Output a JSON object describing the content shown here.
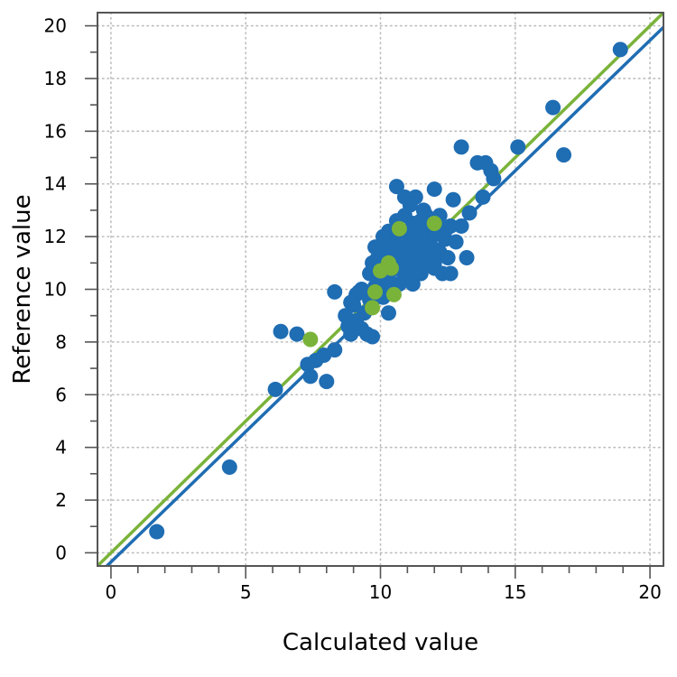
{
  "chart_data": {
    "type": "scatter",
    "xlabel": "Calculated value",
    "ylabel": "Reference value",
    "xlim": [
      -0.5,
      20.5
    ],
    "ylim": [
      -0.5,
      20.5
    ],
    "x_ticks": [
      0,
      5,
      10,
      15,
      20
    ],
    "y_ticks": [
      0,
      2,
      4,
      6,
      8,
      10,
      12,
      14,
      16,
      18,
      20
    ],
    "grid": true,
    "colors": {
      "series_blue": "#1f6db3",
      "series_green": "#7ab33a",
      "grid": "#bdbdbd",
      "axis": "#555555"
    },
    "series": [
      {
        "color": "#1f6db3",
        "fit_line": {
          "slope": 0.99,
          "intercept": -0.35
        },
        "points": [
          [
            1.7,
            0.8
          ],
          [
            4.4,
            3.25
          ],
          [
            6.1,
            6.2
          ],
          [
            6.3,
            8.4
          ],
          [
            6.9,
            8.3
          ],
          [
            7.3,
            7.15
          ],
          [
            7.4,
            6.7
          ],
          [
            7.6,
            7.3
          ],
          [
            7.9,
            7.5
          ],
          [
            8.0,
            6.5
          ],
          [
            8.3,
            9.9
          ],
          [
            8.3,
            7.7
          ],
          [
            8.7,
            9.0
          ],
          [
            8.8,
            8.6
          ],
          [
            8.9,
            8.3
          ],
          [
            9.0,
            9.4
          ],
          [
            9.1,
            8.8
          ],
          [
            9.2,
            9.9
          ],
          [
            9.3,
            8.5
          ],
          [
            9.4,
            9.1
          ],
          [
            9.5,
            8.3
          ],
          [
            9.6,
            9.6
          ],
          [
            9.7,
            8.2
          ],
          [
            9.8,
            10.1
          ],
          [
            9.7,
            11.0
          ],
          [
            9.9,
            10.4
          ],
          [
            10.0,
            11.5
          ],
          [
            10.1,
            10.9
          ],
          [
            10.1,
            9.7
          ],
          [
            10.2,
            11.3
          ],
          [
            10.3,
            10.6
          ],
          [
            10.3,
            9.1
          ],
          [
            10.4,
            11.7
          ],
          [
            10.5,
            10.2
          ],
          [
            10.5,
            11.9
          ],
          [
            10.6,
            12.6
          ],
          [
            10.6,
            13.9
          ],
          [
            10.7,
            11.1
          ],
          [
            10.8,
            10.7
          ],
          [
            10.8,
            12.2
          ],
          [
            10.9,
            11.4
          ],
          [
            10.9,
            13.5
          ],
          [
            11.0,
            10.9
          ],
          [
            11.0,
            12.1
          ],
          [
            11.1,
            11.6
          ],
          [
            11.1,
            10.4
          ],
          [
            11.2,
            12.5
          ],
          [
            11.2,
            11.1
          ],
          [
            11.3,
            13.5
          ],
          [
            11.3,
            10.8
          ],
          [
            11.4,
            11.8
          ],
          [
            11.4,
            12.3
          ],
          [
            11.5,
            11.2
          ],
          [
            11.5,
            10.6
          ],
          [
            11.6,
            11.9
          ],
          [
            11.6,
            13.0
          ],
          [
            11.7,
            11.5
          ],
          [
            11.7,
            10.9
          ],
          [
            11.8,
            12.2
          ],
          [
            11.9,
            11.6
          ],
          [
            12.0,
            11.0
          ],
          [
            12.0,
            13.8
          ],
          [
            12.1,
            12.1
          ],
          [
            12.2,
            11.4
          ],
          [
            12.3,
            10.6
          ],
          [
            12.4,
            11.9
          ],
          [
            12.5,
            11.2
          ],
          [
            12.6,
            12.4
          ],
          [
            12.6,
            10.6
          ],
          [
            12.7,
            13.4
          ],
          [
            12.8,
            11.8
          ],
          [
            13.0,
            12.4
          ],
          [
            13.0,
            15.4
          ],
          [
            13.2,
            11.2
          ],
          [
            13.3,
            12.9
          ],
          [
            13.6,
            14.8
          ],
          [
            13.8,
            13.5
          ],
          [
            13.9,
            14.8
          ],
          [
            14.1,
            14.5
          ],
          [
            14.2,
            14.2
          ],
          [
            15.1,
            15.4
          ],
          [
            16.4,
            16.9
          ],
          [
            16.8,
            15.1
          ],
          [
            18.9,
            19.1
          ],
          [
            9.9,
            11.2
          ],
          [
            10.0,
            10.0
          ],
          [
            10.2,
            10.2
          ],
          [
            10.4,
            10.8
          ],
          [
            10.6,
            11.5
          ],
          [
            10.8,
            11.6
          ],
          [
            11.0,
            11.3
          ],
          [
            11.2,
            11.9
          ],
          [
            11.4,
            11.4
          ],
          [
            11.6,
            10.9
          ],
          [
            11.8,
            11.3
          ],
          [
            10.7,
            10.2
          ],
          [
            11.3,
            12.0
          ],
          [
            11.9,
            12.6
          ],
          [
            12.2,
            12.8
          ],
          [
            10.5,
            11.1
          ],
          [
            9.6,
            10.6
          ],
          [
            9.3,
            10.0
          ],
          [
            9.1,
            9.8
          ],
          [
            8.9,
            9.5
          ],
          [
            10.9,
            12.8
          ],
          [
            11.5,
            12.6
          ],
          [
            12.4,
            12.3
          ],
          [
            11.1,
            13.2
          ],
          [
            10.3,
            12.2
          ],
          [
            11.7,
            12.8
          ],
          [
            12.0,
            10.8
          ],
          [
            10.1,
            12.0
          ],
          [
            9.8,
            11.6
          ],
          [
            11.2,
            10.2
          ]
        ]
      },
      {
        "color": "#7ab33a",
        "fit_line": {
          "slope": 1.0,
          "intercept": 0.0
        },
        "points": [
          [
            7.4,
            8.1
          ],
          [
            9.7,
            9.3
          ],
          [
            9.8,
            9.9
          ],
          [
            10.0,
            10.7
          ],
          [
            10.3,
            11.0
          ],
          [
            10.4,
            10.8
          ],
          [
            10.5,
            9.8
          ],
          [
            10.7,
            12.3
          ],
          [
            12.0,
            12.5
          ]
        ]
      }
    ]
  }
}
